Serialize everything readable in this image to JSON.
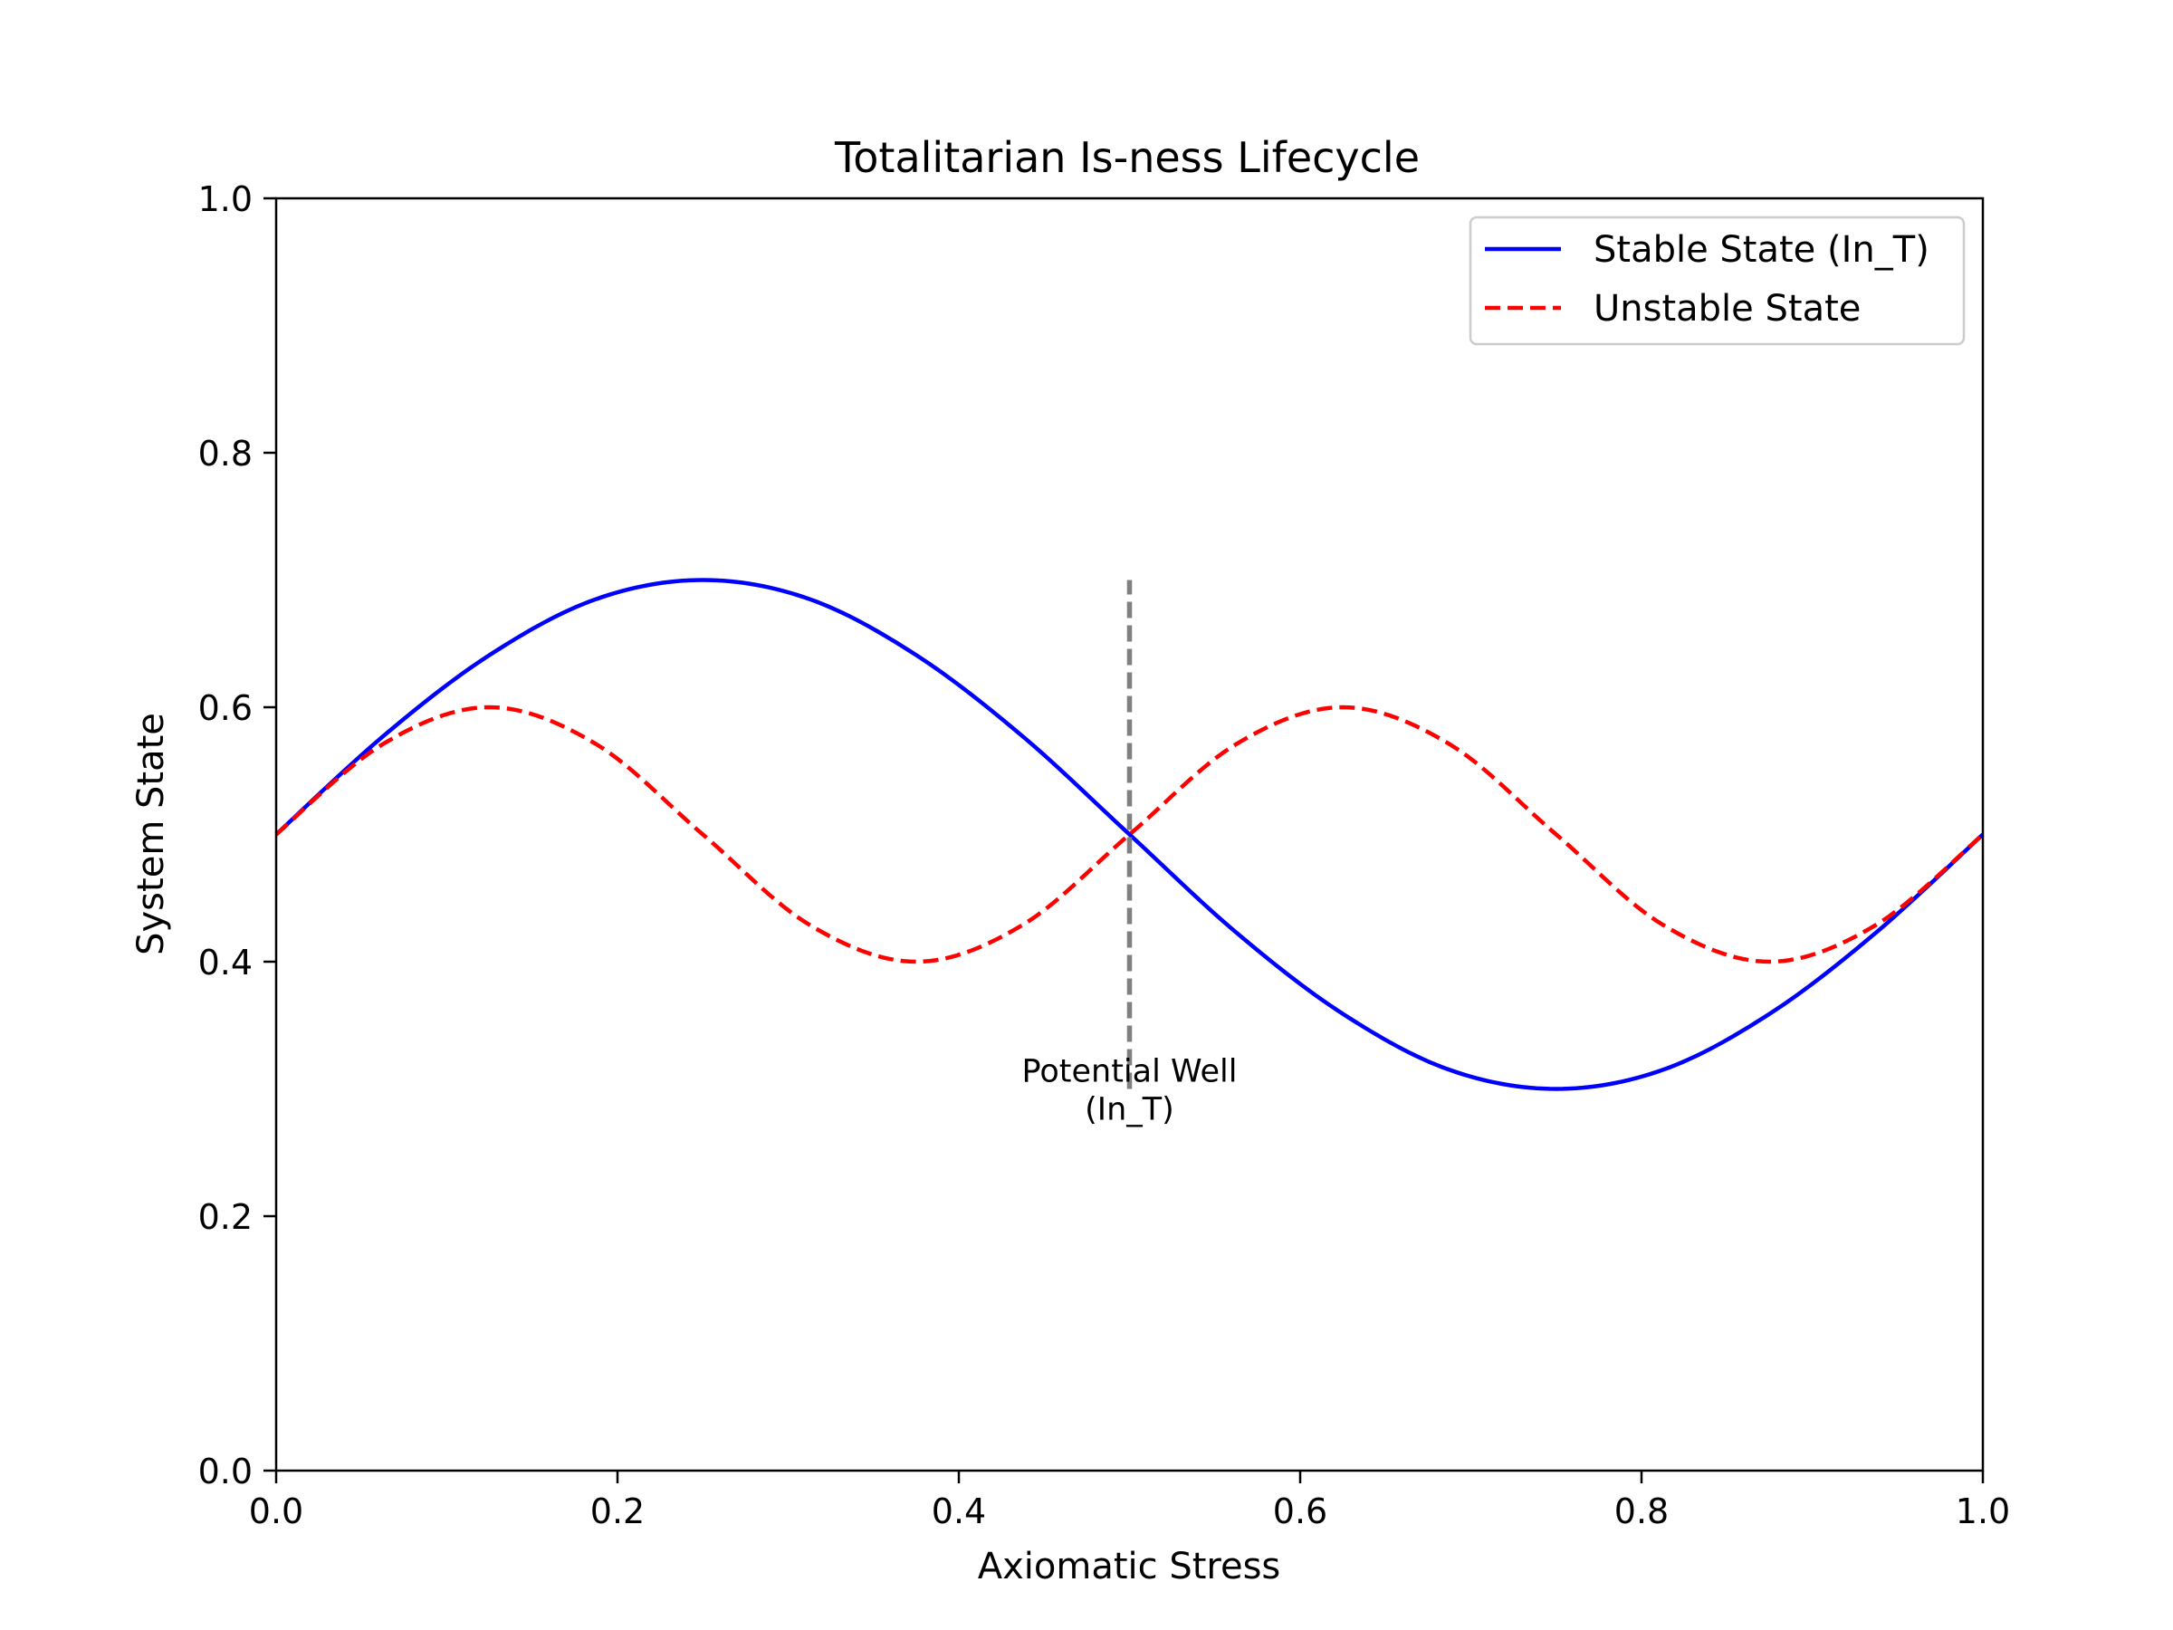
{
  "chart_data": {
    "type": "line",
    "title": "Totalitarian Is-ness Lifecycle",
    "xlabel": "Axiomatic Stress",
    "ylabel": "System State",
    "xlim": [
      0,
      1
    ],
    "ylim": [
      0,
      1
    ],
    "x_ticks": [
      "0.0",
      "0.2",
      "0.4",
      "0.6",
      "0.8",
      "1.0"
    ],
    "y_ticks": [
      "0.0",
      "0.2",
      "0.4",
      "0.6",
      "0.8",
      "1.0"
    ],
    "grid": false,
    "legend_position": "top-right",
    "series": [
      {
        "name": "Stable State (In_T)",
        "color": "#0000ff",
        "style": "solid",
        "x": [
          0,
          0.0625,
          0.125,
          0.1875,
          0.25,
          0.3125,
          0.375,
          0.4375,
          0.5,
          0.5625,
          0.625,
          0.6875,
          0.75,
          0.8125,
          0.875,
          0.9375,
          1.0
        ],
        "y": [
          0.5,
          0.577,
          0.641,
          0.685,
          0.7,
          0.685,
          0.641,
          0.577,
          0.5,
          0.423,
          0.359,
          0.315,
          0.3,
          0.315,
          0.359,
          0.423,
          0.5
        ]
      },
      {
        "name": "Unstable State",
        "color": "#ff0000",
        "style": "dashed",
        "x": [
          0,
          0.0625,
          0.125,
          0.1875,
          0.25,
          0.3125,
          0.375,
          0.4375,
          0.5,
          0.5625,
          0.625,
          0.6875,
          0.75,
          0.8125,
          0.875,
          0.9375,
          1.0
        ],
        "y": [
          0.5,
          0.571,
          0.6,
          0.571,
          0.5,
          0.429,
          0.4,
          0.429,
          0.5,
          0.571,
          0.6,
          0.571,
          0.5,
          0.429,
          0.4,
          0.429,
          0.5
        ]
      }
    ],
    "reference_line": {
      "x": 0.5,
      "y_range": [
        0.3,
        0.7
      ],
      "color": "#808080",
      "style": "dashed"
    },
    "annotation": {
      "lines": [
        "Potential Well",
        "(In_T)"
      ],
      "x": 0.5,
      "y": 0.29
    }
  }
}
